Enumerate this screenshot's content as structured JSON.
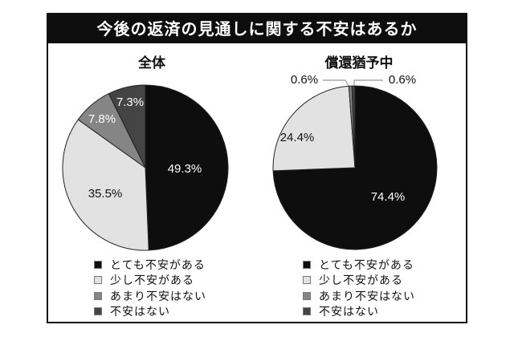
{
  "title": "今後の返済の見通しに関する不安はあるか",
  "legend_labels": [
    "とても不安がある",
    "少し不安がある",
    "あまり不安はない",
    "不安はない"
  ],
  "colors": {
    "とても不安がある": "#0e0e0e",
    "少し不安がある": "#e2e2e2",
    "あまり不安はない": "#858585",
    "不安はない": "#444444"
  },
  "charts": [
    {
      "title": "全体",
      "labels": [
        "49.3%",
        "35.5%",
        "7.8%",
        "7.3%"
      ]
    },
    {
      "title": "償還猶予中",
      "labels": [
        "74.4%",
        "24.4%",
        "0.6%",
        "0.6%"
      ]
    }
  ],
  "chart_data": [
    {
      "type": "pie",
      "title": "全体",
      "categories": [
        "とても不安がある",
        "少し不安がある",
        "あまり不安はない",
        "不安はない"
      ],
      "values": [
        49.3,
        35.5,
        7.8,
        7.3
      ],
      "value_labels": [
        "49.3%",
        "35.5%",
        "7.8%",
        "7.3%"
      ],
      "legend_position": "bottom",
      "start_angle": "12 o'clock",
      "direction": "clockwise"
    },
    {
      "type": "pie",
      "title": "償還猶予中",
      "categories": [
        "とても不安がある",
        "少し不安がある",
        "あまり不安はない",
        "不安はない"
      ],
      "values": [
        74.4,
        24.4,
        0.6,
        0.6
      ],
      "value_labels": [
        "74.4%",
        "24.4%",
        "0.6%",
        "0.6%"
      ],
      "legend_position": "bottom",
      "start_angle": "12 o'clock",
      "direction": "clockwise"
    }
  ]
}
